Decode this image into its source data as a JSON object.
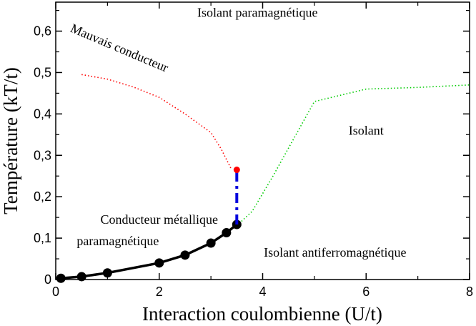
{
  "chart_data": {
    "type": "line",
    "xlabel": "Interaction coulombienne (U/t)",
    "ylabel": "Température (kT/t)",
    "xlim": [
      0,
      8
    ],
    "ylim": [
      0,
      0.67
    ],
    "x_ticks": [
      "0",
      "2",
      "4",
      "6",
      "8"
    ],
    "y_ticks": [
      "0",
      "0,1",
      "0,2",
      "0,3",
      "0,4",
      "0,5",
      "0,6"
    ],
    "grid": false,
    "series": [
      {
        "style": "dotted",
        "color": "#ff0000",
        "points": [
          [
            0.5,
            0.495
          ],
          [
            1.0,
            0.484
          ],
          [
            1.5,
            0.465
          ],
          [
            2.0,
            0.44
          ],
          [
            2.5,
            0.4
          ],
          [
            3.0,
            0.355
          ],
          [
            3.2,
            0.315
          ],
          [
            3.4,
            0.265
          ]
        ]
      },
      {
        "style": "dotted",
        "color": "#00cc00",
        "points": [
          [
            3.5,
            0.13
          ],
          [
            3.8,
            0.165
          ],
          [
            4.2,
            0.25
          ],
          [
            4.6,
            0.34
          ],
          [
            5.0,
            0.43
          ],
          [
            5.5,
            0.445
          ],
          [
            6.0,
            0.46
          ],
          [
            7.0,
            0.464
          ],
          [
            8.0,
            0.47
          ]
        ]
      },
      {
        "style": "solid-markers",
        "color": "#000000",
        "points": [
          [
            0.1,
            0.003
          ],
          [
            0.5,
            0.007
          ],
          [
            1.0,
            0.016
          ],
          [
            2.0,
            0.04
          ],
          [
            2.5,
            0.059
          ],
          [
            3.0,
            0.088
          ],
          [
            3.3,
            0.113
          ],
          [
            3.5,
            0.133
          ]
        ]
      },
      {
        "style": "dashed",
        "color": "#0000dd",
        "points": [
          [
            3.5,
            0.133
          ],
          [
            3.5,
            0.265
          ]
        ]
      }
    ],
    "critical_point": {
      "x": 3.5,
      "y": 0.265,
      "color": "#ff0000"
    },
    "annotations": [
      {
        "text": "Isolant paramagnétique",
        "x": 3.9,
        "y": 0.635
      },
      {
        "text": "Mauvais conducteur",
        "x": 1.2,
        "y": 0.55,
        "rotate": 23
      },
      {
        "text": "Isolant",
        "x": 6.0,
        "y": 0.35
      },
      {
        "text": "Conducteur métallique",
        "x": 2.0,
        "y": 0.135
      },
      {
        "text": "paramagnétique",
        "x": 1.2,
        "y": 0.083
      },
      {
        "text": "Isolant antiferromagnétique",
        "x": 5.4,
        "y": 0.055
      }
    ]
  }
}
